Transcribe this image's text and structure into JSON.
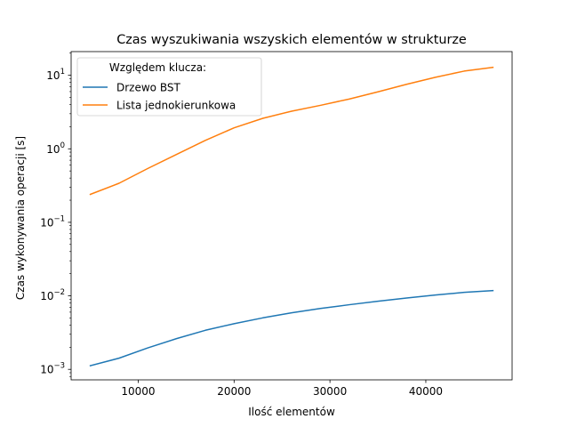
{
  "chart_data": {
    "type": "line",
    "title": "Czas wyszukiwania wszyskich elementów w strukturze",
    "xlabel": "Ilość elementów",
    "ylabel": "Czas wykonywania operacji [s]",
    "xlim": [
      3000,
      49000
    ],
    "ylim": [
      0.00072,
      21
    ],
    "yscale": "log",
    "grid": false,
    "legend_title": "Względem klucza:",
    "legend_position": "top-left",
    "x_ticks": [
      {
        "value": 10000,
        "label": "10000"
      },
      {
        "value": 20000,
        "label": "20000"
      },
      {
        "value": 30000,
        "label": "30000"
      },
      {
        "value": 40000,
        "label": "40000"
      }
    ],
    "y_ticks": [
      {
        "value": 0.001,
        "base": "10",
        "exp": "−3"
      },
      {
        "value": 0.01,
        "base": "10",
        "exp": "−2"
      },
      {
        "value": 0.1,
        "base": "10",
        "exp": "−1"
      },
      {
        "value": 1,
        "base": "10",
        "exp": "0"
      },
      {
        "value": 10,
        "base": "10",
        "exp": "1"
      }
    ],
    "x": [
      5000,
      8000,
      11000,
      14000,
      17000,
      20000,
      23000,
      26000,
      29000,
      32000,
      35000,
      38000,
      41000,
      44000,
      47000
    ],
    "series": [
      {
        "name": "Drzewo BST",
        "color": "#1f77b4",
        "values": [
          0.00112,
          0.00142,
          0.00196,
          0.00262,
          0.0034,
          0.00418,
          0.00502,
          0.00588,
          0.00673,
          0.00757,
          0.00846,
          0.00935,
          0.01025,
          0.01115,
          0.0118
        ]
      },
      {
        "name": "Lista jednokierunkowa",
        "color": "#ff7f0e",
        "values": [
          0.24,
          0.34,
          0.54,
          0.84,
          1.3,
          1.93,
          2.6,
          3.25,
          3.9,
          4.75,
          5.95,
          7.55,
          9.4,
          11.4,
          12.8
        ]
      }
    ]
  }
}
